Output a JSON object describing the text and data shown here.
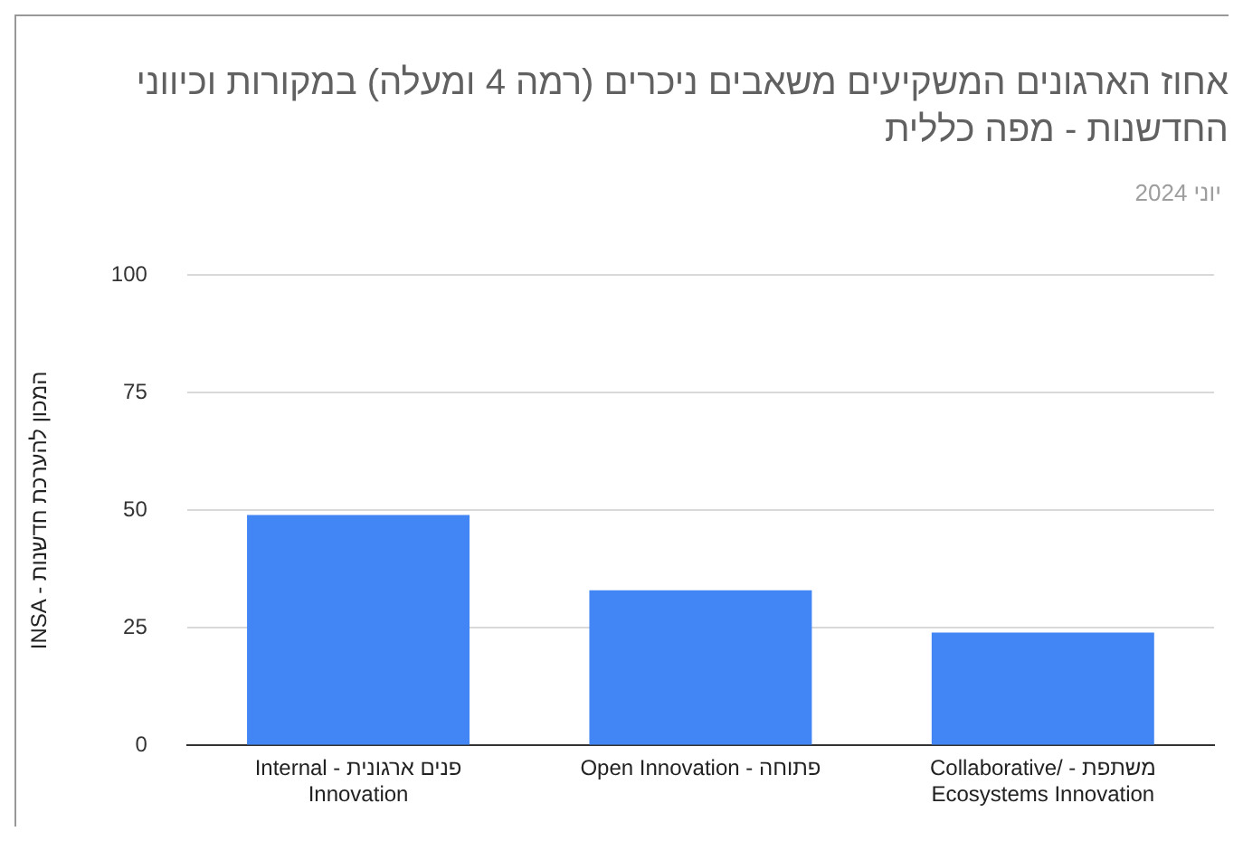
{
  "chart_data": {
    "type": "bar",
    "title": "אחוז הארגונים המשקיעים משאבים ניכרים (רמה 4 ומעלה) במקורות וכיווני החדשנות - מפה כללית",
    "subtitle": "יוני 2024",
    "ylabel": "INSA - המכון להערכת חדשנות",
    "categories": [
      "Internal - פנים ארגונית\nInnovation",
      "Open Innovation - פתוחה",
      "Collaborative/ - משתפת\nEcosystems Innovation"
    ],
    "values": [
      49,
      33,
      24
    ],
    "color": "#4285f4",
    "ylim": [
      0,
      100
    ],
    "yticks": [
      0,
      25,
      50,
      75,
      100
    ],
    "grid": "y"
  }
}
